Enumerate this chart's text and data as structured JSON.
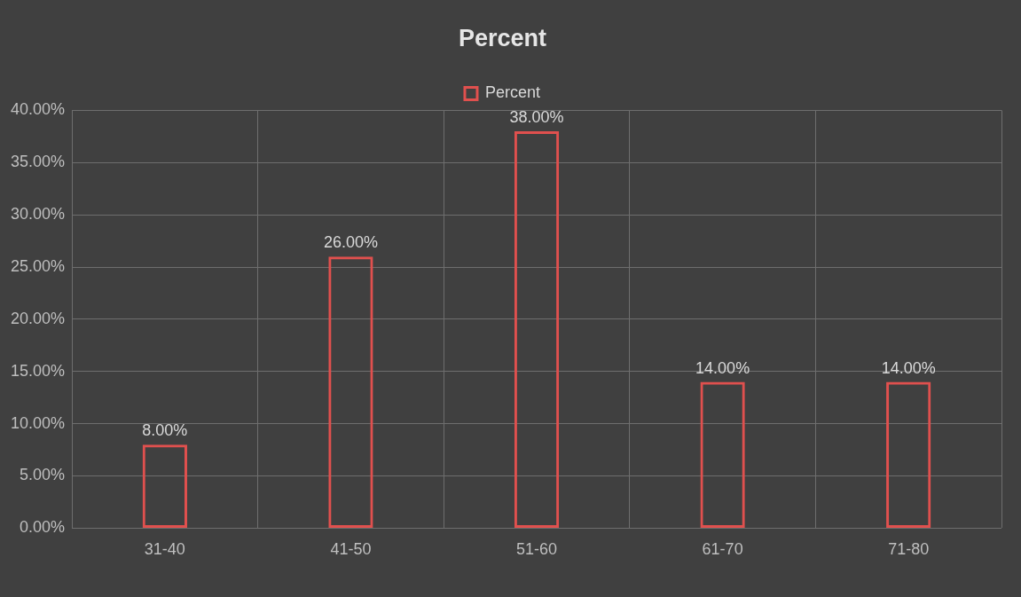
{
  "chart_data": {
    "type": "bar",
    "title": "Percent",
    "categories": [
      "31-40",
      "41-50",
      "51-60",
      "61-70",
      "71-80"
    ],
    "series": [
      {
        "name": "Percent",
        "color": "#e0504e",
        "values": [
          8,
          26,
          38,
          14,
          14
        ],
        "value_labels": [
          "8.00%",
          "26.00%",
          "38.00%",
          "14.00%",
          "14.00%"
        ]
      }
    ],
    "ylim": [
      0,
      40
    ],
    "yticks": [
      {
        "value": 0,
        "label": "0.00%"
      },
      {
        "value": 5,
        "label": "5.00%"
      },
      {
        "value": 10,
        "label": "10.00%"
      },
      {
        "value": 15,
        "label": "15.00%"
      },
      {
        "value": 20,
        "label": "20.00%"
      },
      {
        "value": 25,
        "label": "25.00%"
      },
      {
        "value": 30,
        "label": "30.00%"
      },
      {
        "value": 35,
        "label": "35.00%"
      },
      {
        "value": 40,
        "label": "40.00%"
      }
    ],
    "grid": true,
    "legend": "top"
  }
}
